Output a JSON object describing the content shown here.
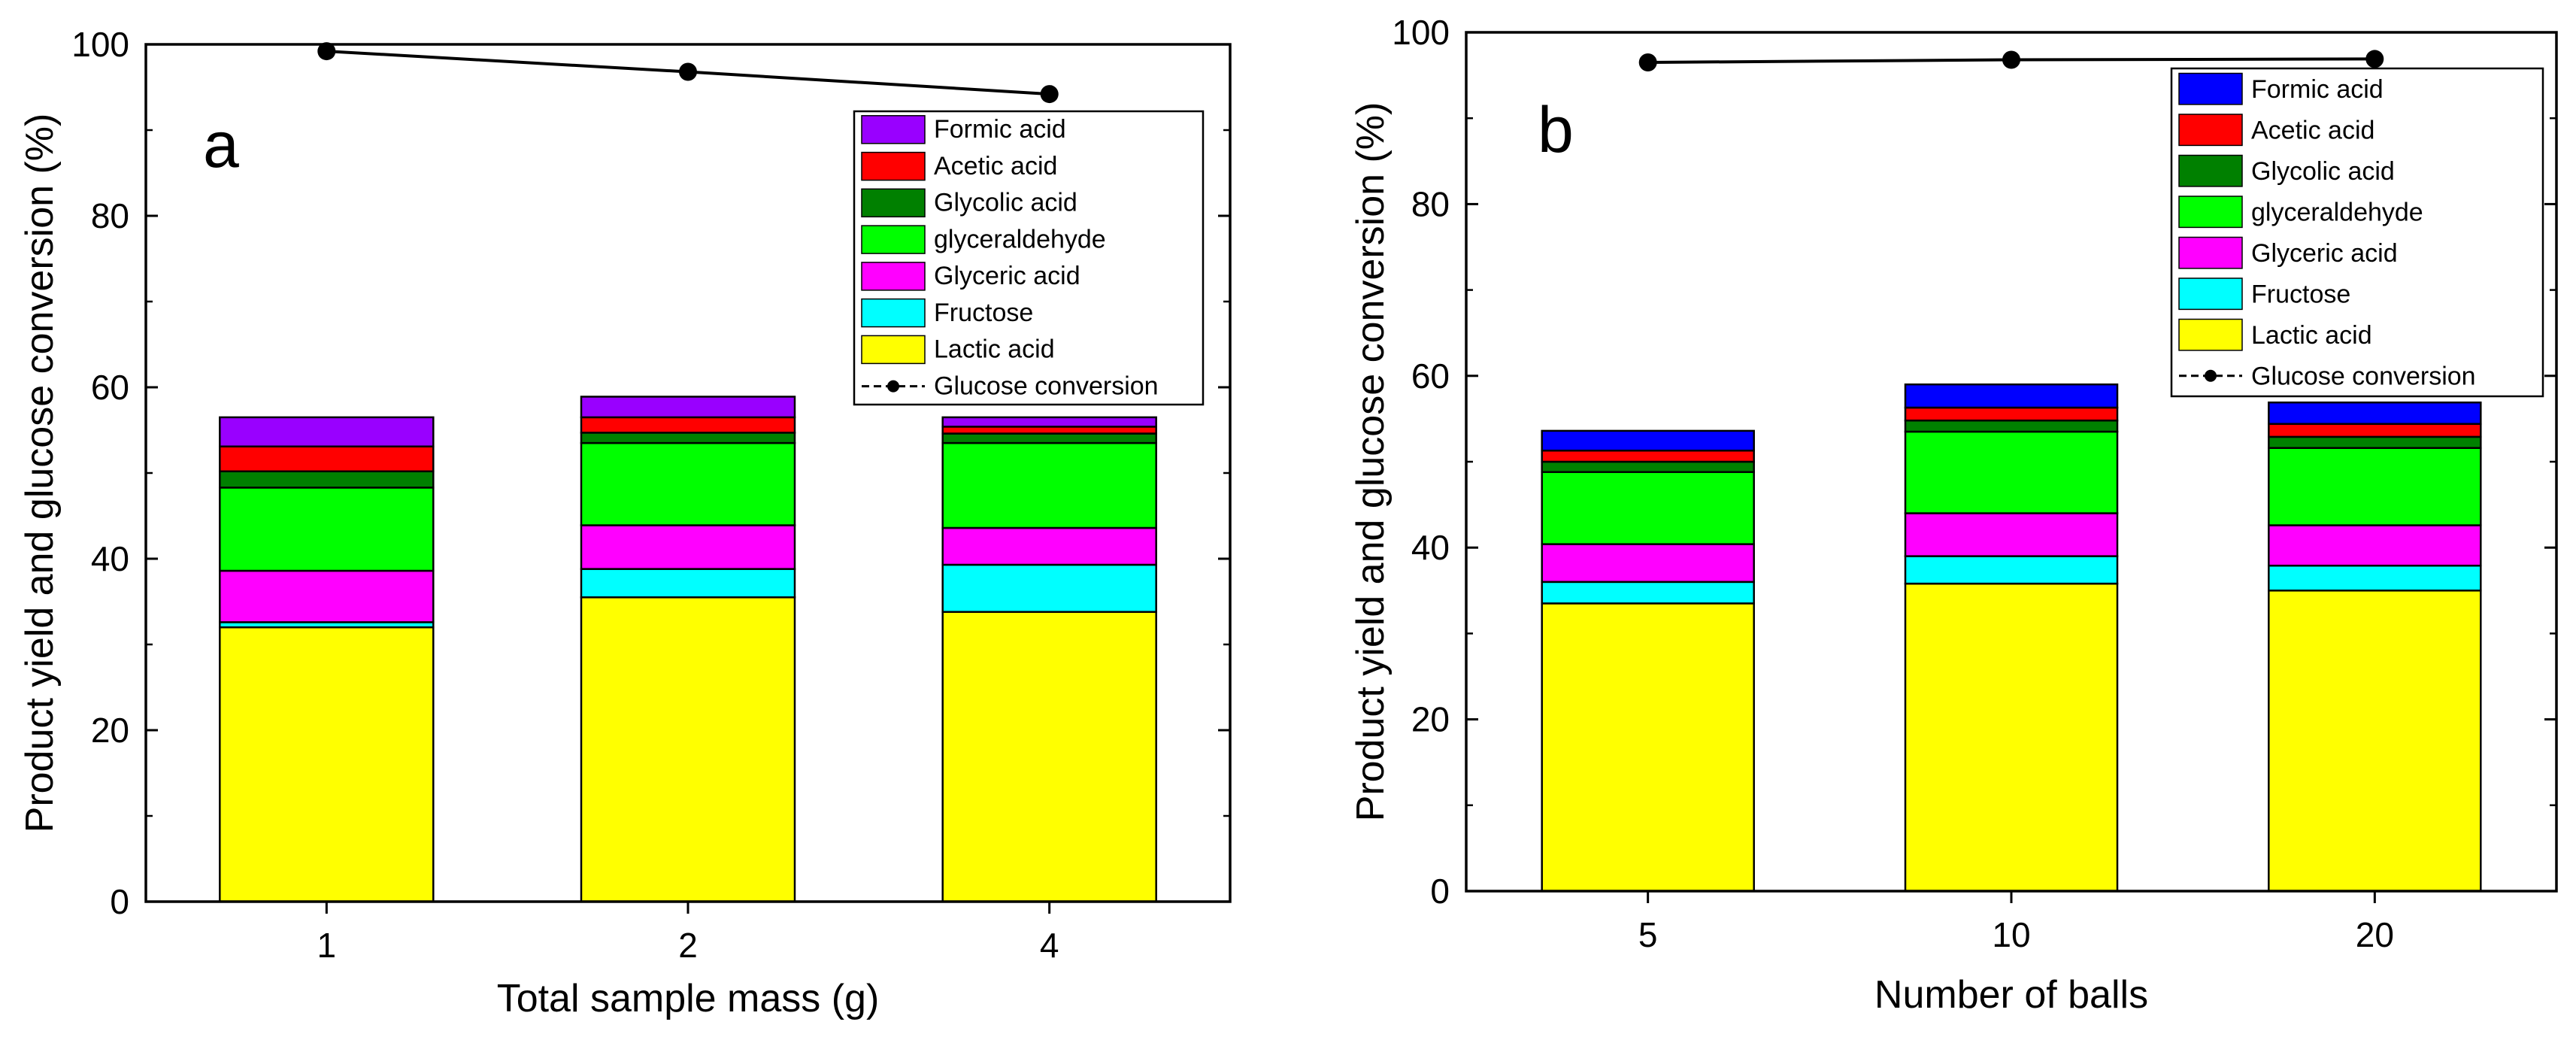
{
  "chart_data": [
    {
      "type": "bar",
      "stacked": true,
      "panel_label": "a",
      "xlabel": "Total sample mass (g)",
      "ylabel": "Product yield and glucose conversion (%)",
      "ylim": [
        0,
        100
      ],
      "yticks": [
        0,
        20,
        40,
        60,
        80,
        100
      ],
      "categories": [
        "1",
        "2",
        "4"
      ],
      "series": [
        {
          "name": "Lactic acid",
          "color": "#ffff00",
          "values": [
            32.0,
            35.5,
            33.8
          ]
        },
        {
          "name": "Fructose",
          "color": "#00ffff",
          "values": [
            0.6,
            3.3,
            5.5
          ]
        },
        {
          "name": "Glyceric acid",
          "color": "#ff00ff",
          "values": [
            6.0,
            5.1,
            4.3
          ]
        },
        {
          "name": "glyceraldehyde",
          "color": "#00ff00",
          "values": [
            9.7,
            9.6,
            9.9
          ]
        },
        {
          "name": "Glycolic acid",
          "color": "#008000",
          "values": [
            1.9,
            1.2,
            1.1
          ]
        },
        {
          "name": "Acetic acid",
          "color": "#ff0000",
          "values": [
            2.9,
            1.8,
            0.8
          ]
        },
        {
          "name": "Formic acid",
          "color": "#9900ff",
          "values": [
            3.4,
            2.4,
            1.1
          ]
        }
      ],
      "line": {
        "name": "Glucose conversion",
        "values": [
          99.2,
          96.8,
          94.2
        ]
      },
      "legend_position": "top-right"
    },
    {
      "type": "bar",
      "stacked": true,
      "panel_label": "b",
      "xlabel": "Number of balls",
      "ylabel": "Product yield and glucose conversion (%)",
      "ylim": [
        0,
        100
      ],
      "yticks": [
        0,
        20,
        40,
        60,
        80,
        100
      ],
      "categories": [
        "5",
        "10",
        "20"
      ],
      "series": [
        {
          "name": "Lactic acid",
          "color": "#ffff00",
          "values": [
            33.5,
            35.8,
            35.0
          ]
        },
        {
          "name": "Fructose",
          "color": "#00ffff",
          "values": [
            2.5,
            3.2,
            2.9
          ]
        },
        {
          "name": "Glyceric acid",
          "color": "#ff00ff",
          "values": [
            4.4,
            5.0,
            4.7
          ]
        },
        {
          "name": "glyceraldehyde",
          "color": "#00ff00",
          "values": [
            8.4,
            9.5,
            9.0
          ]
        },
        {
          "name": "Glycolic acid",
          "color": "#008000",
          "values": [
            1.2,
            1.3,
            1.3
          ]
        },
        {
          "name": "Acetic acid",
          "color": "#ff0000",
          "values": [
            1.3,
            1.5,
            1.5
          ]
        },
        {
          "name": "Formic acid",
          "color": "#0000ff",
          "values": [
            2.3,
            2.7,
            2.5
          ]
        }
      ],
      "line": {
        "name": "Glucose conversion",
        "values": [
          96.5,
          96.8,
          96.9
        ]
      },
      "legend_position": "top-right"
    }
  ]
}
